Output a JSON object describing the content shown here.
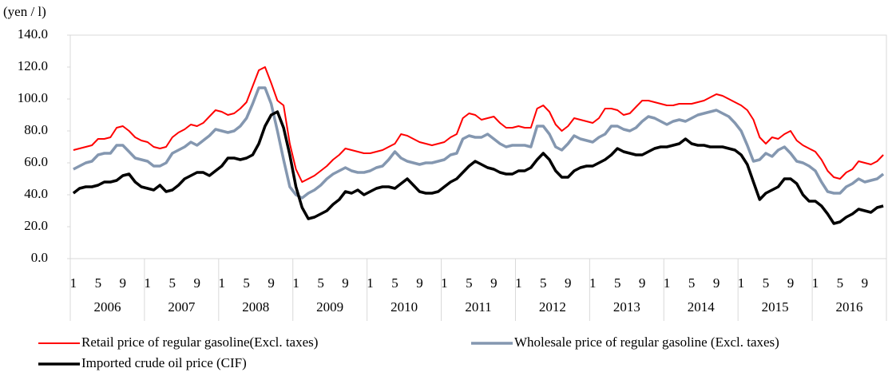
{
  "chart_data": {
    "type": "line",
    "y_label": "(yen / l)",
    "categories": [
      "1",
      null,
      null,
      null,
      "5",
      null,
      null,
      null,
      "9",
      null,
      null,
      null,
      "1",
      null,
      null,
      null,
      "5",
      null,
      null,
      null,
      "9",
      null,
      null,
      null,
      "1",
      null,
      null,
      null,
      "5",
      null,
      null,
      null,
      "9",
      null,
      null,
      null,
      "1",
      null,
      null,
      null,
      "5",
      null,
      null,
      null,
      "9",
      null,
      null,
      null,
      "1",
      null,
      null,
      null,
      "5",
      null,
      null,
      null,
      "9",
      null,
      null,
      null,
      "1",
      null,
      null,
      null,
      "5",
      null,
      null,
      null,
      "9",
      null,
      null,
      null,
      "1",
      null,
      null,
      null,
      "5",
      null,
      null,
      null,
      "9",
      null,
      null,
      null,
      "1",
      null,
      null,
      null,
      "5",
      null,
      null,
      null,
      "9",
      null,
      null,
      null,
      "1",
      null,
      null,
      null,
      "5",
      null,
      null,
      null,
      "9",
      null,
      null,
      null,
      "1",
      null,
      null,
      null,
      "5",
      null,
      null,
      null,
      "9",
      null,
      null,
      null,
      "1",
      null,
      null,
      null,
      "5",
      null,
      null,
      null,
      "9",
      null,
      null,
      null
    ],
    "years": [
      "2006",
      "2007",
      "2008",
      "2009",
      "2010",
      "2011",
      "2012",
      "2013",
      "2014",
      "2015",
      "2016"
    ],
    "ylim": [
      0,
      140
    ],
    "yticks": [
      {
        "value": 0,
        "label": "0.0"
      },
      {
        "value": 20,
        "label": "20.0"
      },
      {
        "value": 40,
        "label": "40.0"
      },
      {
        "value": 60,
        "label": "60.0"
      },
      {
        "value": 80,
        "label": "80.0"
      },
      {
        "value": 100,
        "label": "100.0"
      },
      {
        "value": 120,
        "label": "120.0"
      },
      {
        "value": 140,
        "label": "140.0"
      }
    ],
    "legend": "bottom",
    "series": [
      {
        "name": "Retail price of regular gasoline(Excl. taxes)",
        "color": "#ff0000",
        "width": 2,
        "values": [
          68,
          69,
          70,
          71,
          75,
          75,
          76,
          82,
          83,
          80,
          76,
          74,
          73,
          70,
          69,
          70,
          76,
          79,
          81,
          84,
          83,
          85,
          89,
          93,
          92,
          90,
          91,
          94,
          98,
          108,
          118,
          120,
          110,
          99,
          96,
          72,
          56,
          48,
          50,
          52,
          55,
          58,
          62,
          65,
          69,
          68,
          67,
          66,
          66,
          67,
          68,
          70,
          72,
          78,
          77,
          75,
          73,
          72,
          71,
          72,
          73,
          76,
          78,
          88,
          91,
          90,
          87,
          88,
          89,
          85,
          82,
          82,
          83,
          82,
          82,
          94,
          96,
          92,
          84,
          80,
          83,
          88,
          87,
          86,
          85,
          88,
          94,
          94,
          93,
          90,
          91,
          95,
          99,
          99,
          98,
          97,
          96,
          96,
          97,
          97,
          97,
          98,
          99,
          101,
          103,
          102,
          100,
          98,
          96,
          93,
          87,
          76,
          72,
          76,
          75,
          78,
          80,
          74,
          71,
          69,
          67,
          62,
          55,
          51,
          50,
          54,
          56,
          61,
          60,
          59,
          61,
          65
        ]
      },
      {
        "name": "Wholesale price of regular gasoline (Excl. taxes)",
        "color": "#8497b0",
        "width": 3.5,
        "values": [
          56,
          58,
          60,
          61,
          65,
          66,
          66,
          71,
          71,
          67,
          63,
          62,
          61,
          58,
          58,
          60,
          66,
          68,
          70,
          73,
          71,
          74,
          77,
          81,
          80,
          79,
          80,
          83,
          88,
          97,
          107,
          107,
          97,
          80,
          62,
          45,
          40,
          38,
          41,
          43,
          46,
          50,
          53,
          55,
          57,
          55,
          54,
          54,
          55,
          57,
          58,
          62,
          67,
          63,
          61,
          60,
          59,
          60,
          60,
          61,
          62,
          65,
          66,
          75,
          77,
          76,
          76,
          78,
          75,
          72,
          70,
          71,
          71,
          71,
          70,
          83,
          83,
          78,
          70,
          68,
          72,
          77,
          75,
          74,
          73,
          76,
          78,
          83,
          83,
          81,
          80,
          82,
          86,
          89,
          88,
          86,
          84,
          86,
          87,
          86,
          88,
          90,
          91,
          92,
          93,
          91,
          89,
          85,
          80,
          71,
          61,
          62,
          66,
          64,
          68,
          70,
          66,
          61,
          60,
          58,
          55,
          48,
          42,
          41,
          41,
          45,
          47,
          50,
          48,
          49,
          50,
          53
        ]
      },
      {
        "name": "Imported crude oil price (CIF)",
        "color": "#000000",
        "width": 3.5,
        "values": [
          41,
          44,
          45,
          45,
          46,
          48,
          48,
          49,
          52,
          53,
          48,
          45,
          44,
          43,
          46,
          42,
          43,
          46,
          50,
          52,
          54,
          54,
          52,
          55,
          58,
          63,
          63,
          62,
          63,
          65,
          72,
          83,
          90,
          92,
          82,
          65,
          45,
          32,
          25,
          26,
          28,
          30,
          34,
          37,
          42,
          41,
          43,
          40,
          42,
          44,
          45,
          45,
          44,
          47,
          50,
          46,
          42,
          41,
          41,
          42,
          45,
          48,
          50,
          54,
          58,
          61,
          59,
          57,
          56,
          54,
          53,
          53,
          55,
          55,
          57,
          62,
          66,
          62,
          55,
          51,
          51,
          55,
          57,
          58,
          58,
          60,
          62,
          65,
          69,
          67,
          66,
          65,
          65,
          67,
          69,
          70,
          70,
          71,
          72,
          75,
          72,
          71,
          71,
          70,
          70,
          70,
          69,
          68,
          65,
          59,
          48,
          37,
          41,
          43,
          45,
          50,
          50,
          47,
          40,
          36,
          36,
          33,
          28,
          22,
          23,
          26,
          28,
          31,
          30,
          29,
          32,
          33
        ]
      }
    ]
  }
}
